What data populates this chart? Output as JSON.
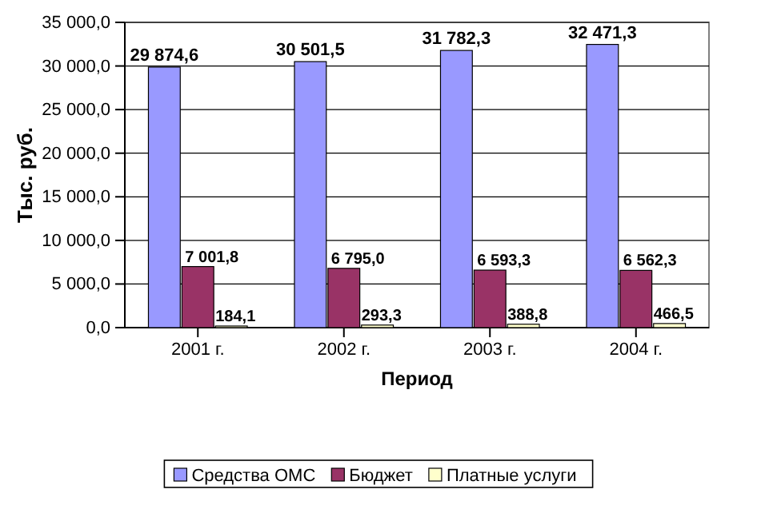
{
  "chart_data": {
    "type": "bar",
    "xlabel": "Период",
    "ylabel": "Тыс. руб.",
    "categories": [
      "2001 г.",
      "2002 г.",
      "2003 г.",
      "2004 г."
    ],
    "series": [
      {
        "name": "Средства ОМС",
        "color": "#9999ff",
        "values": [
          29874.6,
          30501.5,
          31782.3,
          32471.3
        ],
        "value_labels": [
          "29 874,6",
          "30 501,5",
          "31 782,3",
          "32 471,3"
        ]
      },
      {
        "name": "Бюджет",
        "color": "#993366",
        "values": [
          7001.8,
          6795.0,
          6593.3,
          6562.3
        ],
        "value_labels": [
          "7 001,8",
          "6 795,0",
          "6 593,3",
          "6 562,3"
        ]
      },
      {
        "name": "Платные услуги",
        "color": "#ffffcc",
        "values": [
          184.1,
          293.3,
          388.8,
          466.5
        ],
        "value_labels": [
          "184,1",
          "293,3",
          "388,8",
          "466,5"
        ]
      }
    ],
    "ylim": [
      0,
      35000
    ],
    "yticks": [
      {
        "value": 0,
        "label": "0,0"
      },
      {
        "value": 5000,
        "label": "5 000,0"
      },
      {
        "value": 10000,
        "label": "10 000,0"
      },
      {
        "value": 15000,
        "label": "15 000,0"
      },
      {
        "value": 20000,
        "label": "20 000,0"
      },
      {
        "value": 25000,
        "label": "25 000,0"
      },
      {
        "value": 30000,
        "label": "30 000,0"
      },
      {
        "value": 35000,
        "label": "35 000,0"
      }
    ],
    "grid": "y",
    "legend": "bottom"
  }
}
